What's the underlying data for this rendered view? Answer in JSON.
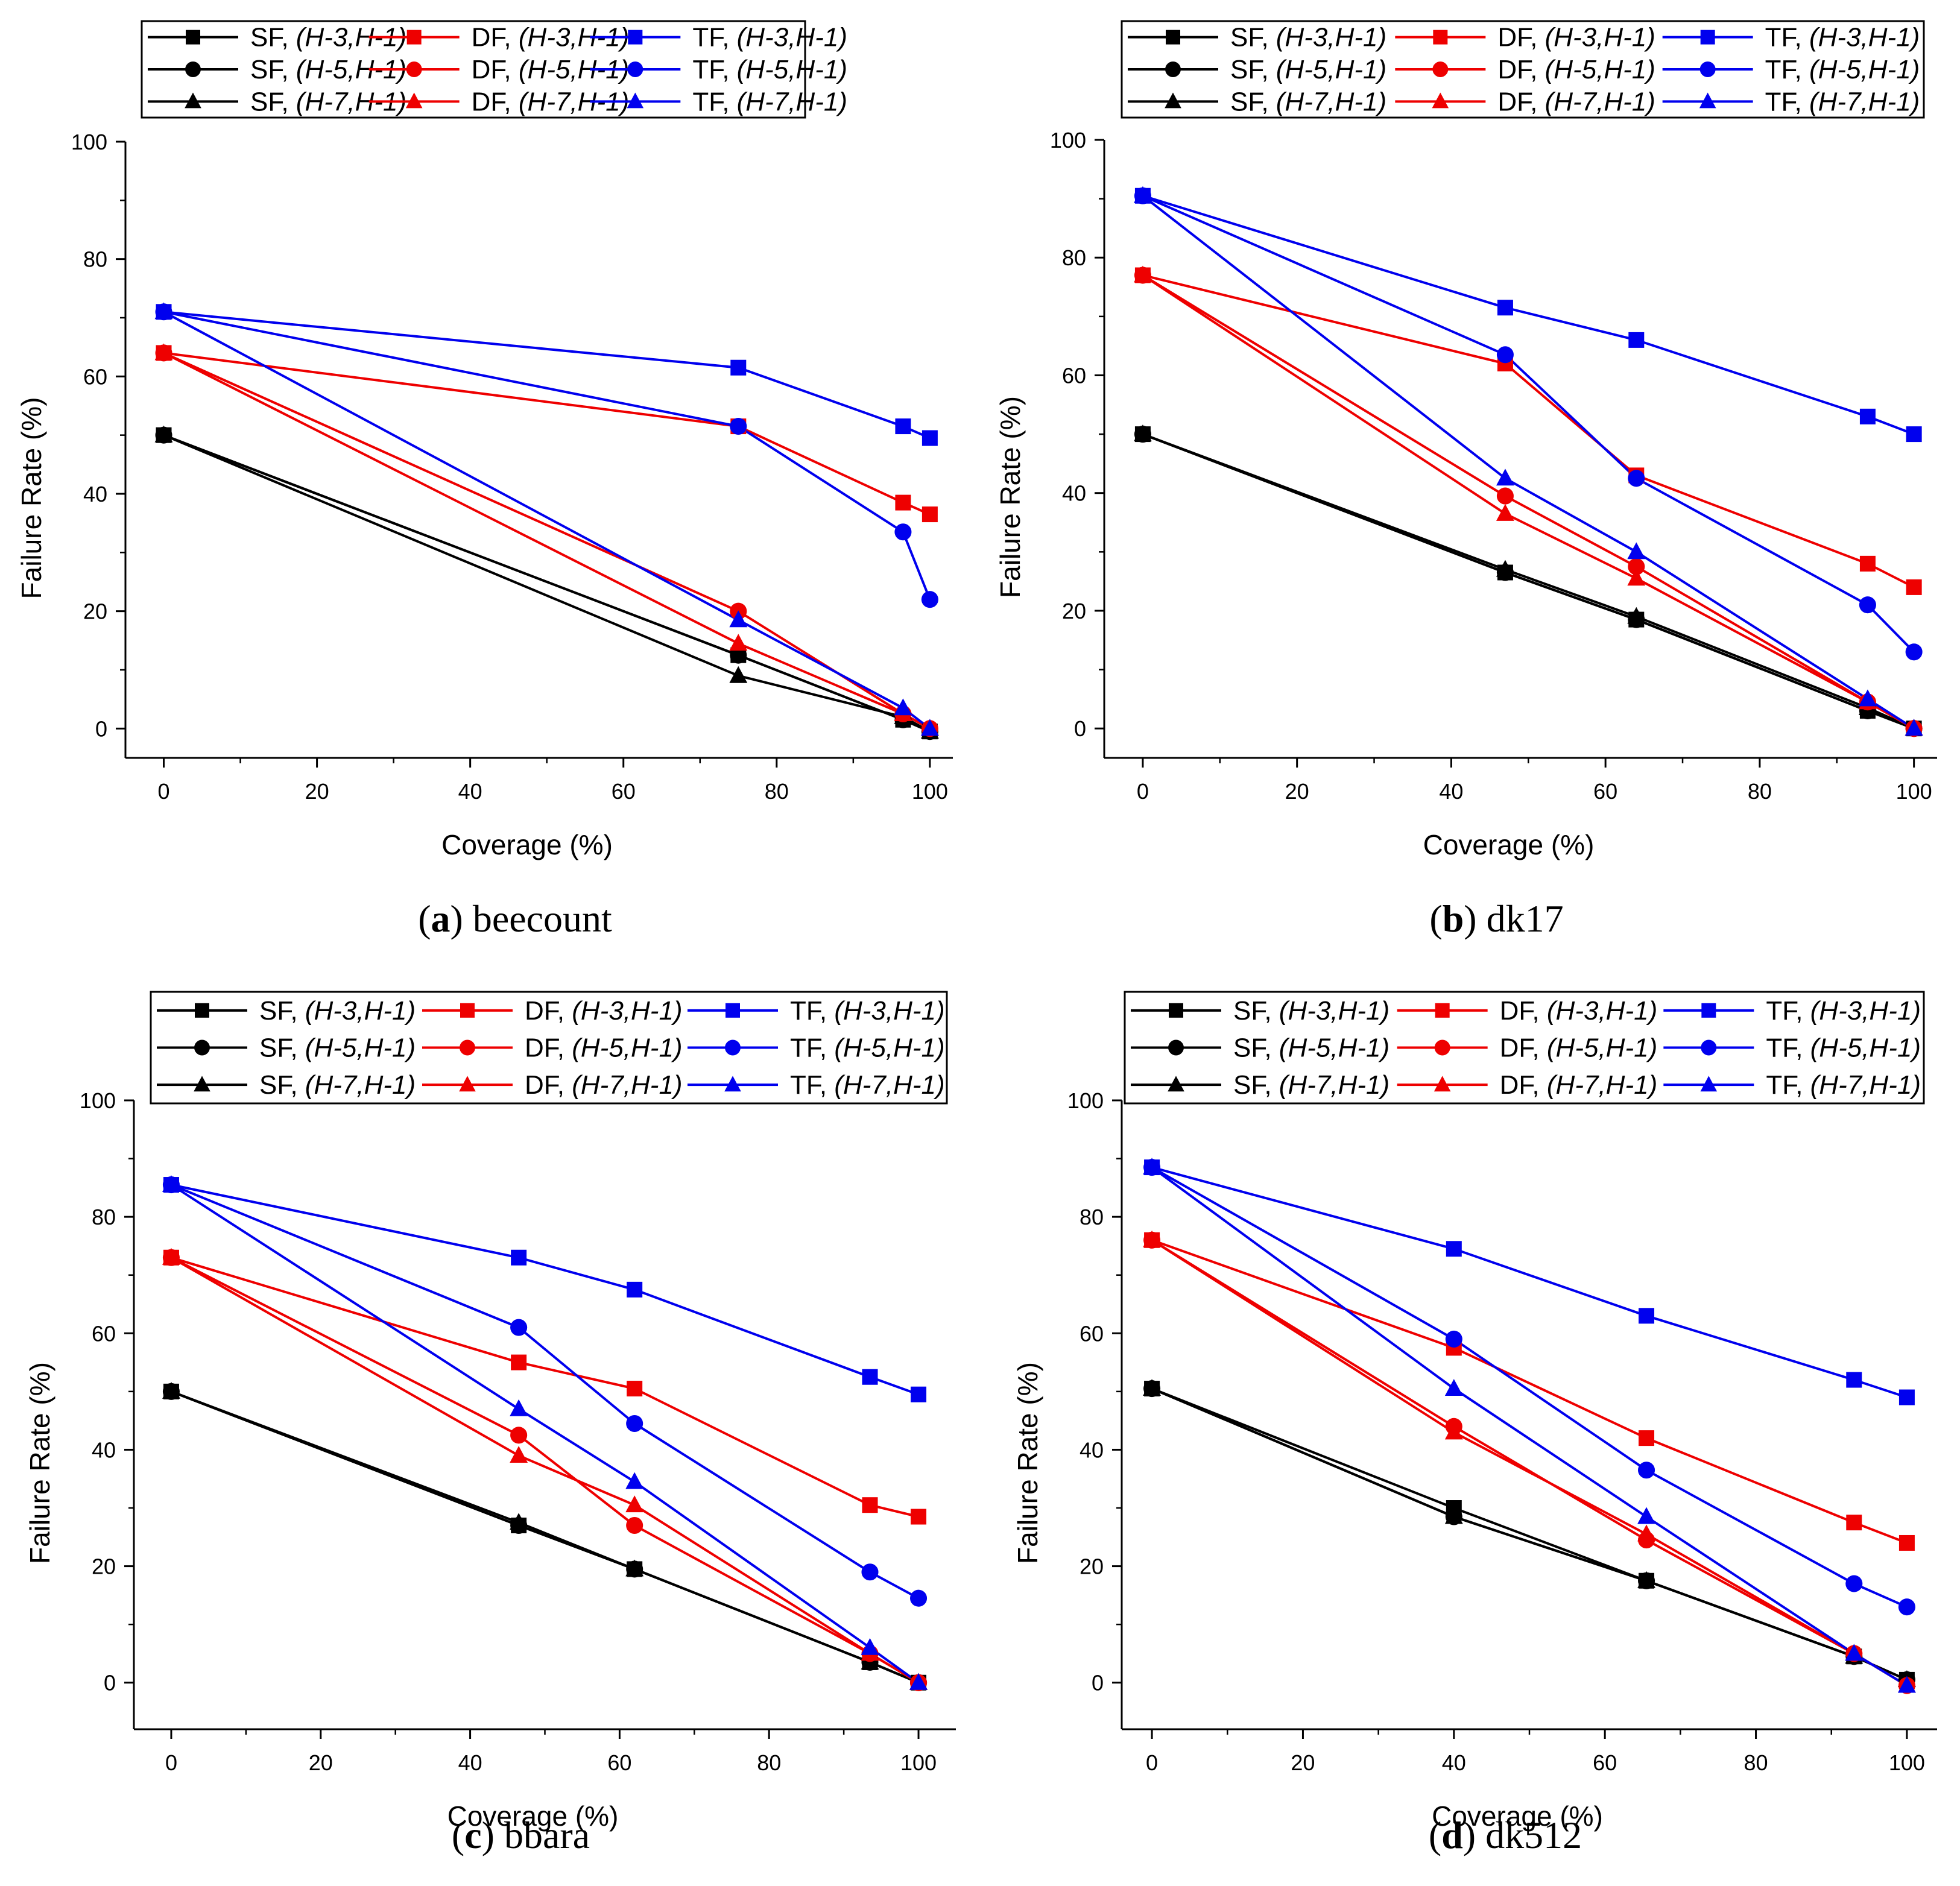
{
  "figure": {
    "legend_entries": [
      {
        "prefix": "SF, ",
        "params": "(H-3,H-1)",
        "color": "#000000",
        "marker": "square"
      },
      {
        "prefix": "DF, ",
        "params": "(H-3,H-1)",
        "color": "#ee0000",
        "marker": "square"
      },
      {
        "prefix": "TF, ",
        "params": "(H-3,H-1)",
        "color": "#0000ee",
        "marker": "square"
      },
      {
        "prefix": "SF, ",
        "params": "(H-5,H-1)",
        "color": "#000000",
        "marker": "circle"
      },
      {
        "prefix": "DF, ",
        "params": "(H-5,H-1)",
        "color": "#ee0000",
        "marker": "circle"
      },
      {
        "prefix": "TF, ",
        "params": "(H-5,H-1)",
        "color": "#0000ee",
        "marker": "circle"
      },
      {
        "prefix": "SF, ",
        "params": "(H-7,H-1)",
        "color": "#000000",
        "marker": "triangle"
      },
      {
        "prefix": "DF, ",
        "params": "(H-7,H-1)",
        "color": "#ee0000",
        "marker": "triangle"
      },
      {
        "prefix": "TF, ",
        "params": "(H-7,H-1)",
        "color": "#0000ee",
        "marker": "triangle"
      }
    ]
  },
  "chart_data": [
    {
      "type": "line",
      "caption_letter": "(a)",
      "caption_name": "beecount",
      "xlabel": "Coverage (%)",
      "ylabel": "Failure Rate (%)",
      "xlim": [
        -5,
        103
      ],
      "ylim": [
        -5,
        100
      ],
      "xticks": [
        0,
        20,
        40,
        60,
        80,
        100
      ],
      "yticks": [
        0,
        20,
        40,
        60,
        80,
        100
      ],
      "series": [
        {
          "name": "SF, (H-3,H-1)",
          "x": [
            0,
            75,
            96.5,
            100
          ],
          "y": [
            50,
            12.5,
            1.5,
            -0.5
          ]
        },
        {
          "name": "SF, (H-5,H-1)",
          "x": [
            0,
            75,
            96.5,
            100
          ],
          "y": [
            50,
            12.5,
            1.5,
            -0.5
          ]
        },
        {
          "name": "SF, (H-7,H-1)",
          "x": [
            0,
            75,
            96.5,
            100
          ],
          "y": [
            50,
            9,
            2,
            -0.5
          ]
        },
        {
          "name": "DF, (H-3,H-1)",
          "x": [
            0,
            75,
            96.5,
            100
          ],
          "y": [
            64,
            51.5,
            38.5,
            36.5
          ]
        },
        {
          "name": "DF, (H-5,H-1)",
          "x": [
            0,
            75,
            96.5,
            100
          ],
          "y": [
            64,
            20,
            2.5,
            0
          ]
        },
        {
          "name": "DF, (H-7,H-1)",
          "x": [
            0,
            75,
            96.5,
            100
          ],
          "y": [
            64,
            14.5,
            2.5,
            0
          ]
        },
        {
          "name": "TF, (H-3,H-1)",
          "x": [
            0,
            75,
            96.5,
            100
          ],
          "y": [
            71,
            61.5,
            51.5,
            49.5
          ]
        },
        {
          "name": "TF, (H-5,H-1)",
          "x": [
            0,
            75,
            96.5,
            100
          ],
          "y": [
            71,
            51.5,
            33.5,
            22
          ]
        },
        {
          "name": "TF, (H-7,H-1)",
          "x": [
            0,
            75,
            96.5,
            100
          ],
          "y": [
            71,
            18.5,
            3.5,
            0
          ]
        }
      ]
    },
    {
      "type": "line",
      "caption_letter": "(b)",
      "caption_name": "dk17",
      "xlabel": "Coverage (%)",
      "ylabel": "Failure Rate (%)",
      "xlim": [
        -5,
        103
      ],
      "ylim": [
        -5,
        100
      ],
      "xticks": [
        0,
        20,
        40,
        60,
        80,
        100
      ],
      "yticks": [
        0,
        20,
        40,
        60,
        80,
        100
      ],
      "series": [
        {
          "name": "SF, (H-3,H-1)",
          "x": [
            0,
            47,
            64,
            94,
            100
          ],
          "y": [
            50,
            26.5,
            18.5,
            3,
            0
          ]
        },
        {
          "name": "SF, (H-5,H-1)",
          "x": [
            0,
            47,
            64,
            94,
            100
          ],
          "y": [
            50,
            26.5,
            18.5,
            3,
            0
          ]
        },
        {
          "name": "SF, (H-7,H-1)",
          "x": [
            0,
            47,
            64,
            94,
            100
          ],
          "y": [
            50,
            27,
            19,
            3.5,
            0
          ]
        },
        {
          "name": "DF, (H-3,H-1)",
          "x": [
            0,
            47,
            64,
            94,
            100
          ],
          "y": [
            77,
            62,
            43,
            28,
            24
          ]
        },
        {
          "name": "DF, (H-5,H-1)",
          "x": [
            0,
            47,
            64,
            94,
            100
          ],
          "y": [
            77,
            39.5,
            27.5,
            4.5,
            0
          ]
        },
        {
          "name": "DF, (H-7,H-1)",
          "x": [
            0,
            47,
            64,
            94,
            100
          ],
          "y": [
            77,
            36.5,
            25.5,
            4.5,
            0
          ]
        },
        {
          "name": "TF, (H-3,H-1)",
          "x": [
            0,
            47,
            64,
            94,
            100
          ],
          "y": [
            90.5,
            71.5,
            66,
            53,
            50
          ]
        },
        {
          "name": "TF, (H-5,H-1)",
          "x": [
            0,
            47,
            64,
            94,
            100
          ],
          "y": [
            90.5,
            63.5,
            42.5,
            21,
            13
          ]
        },
        {
          "name": "TF, (H-7,H-1)",
          "x": [
            0,
            47,
            64,
            94,
            100
          ],
          "y": [
            90.5,
            42.5,
            30,
            5,
            0
          ]
        }
      ]
    },
    {
      "type": "line",
      "caption_letter": "(c)",
      "caption_name": "bbara",
      "xlabel": "Coverage (%)",
      "ylabel": "Failure Rate (%)",
      "xlim": [
        -5,
        105
      ],
      "ylim": [
        -8,
        100
      ],
      "xticks": [
        0,
        20,
        40,
        60,
        80,
        100
      ],
      "yticks": [
        0,
        20,
        40,
        60,
        80,
        100
      ],
      "series": [
        {
          "name": "SF, (H-3,H-1)",
          "x": [
            0,
            46.5,
            62,
            93.5,
            100
          ],
          "y": [
            50,
            27,
            19.5,
            3.5,
            0
          ]
        },
        {
          "name": "SF, (H-5,H-1)",
          "x": [
            0,
            46.5,
            62,
            93.5,
            100
          ],
          "y": [
            50,
            27,
            19.5,
            3.5,
            0
          ]
        },
        {
          "name": "SF, (H-7,H-1)",
          "x": [
            0,
            46.5,
            62,
            93.5,
            100
          ],
          "y": [
            50,
            27.5,
            19.5,
            3.5,
            0
          ]
        },
        {
          "name": "DF, (H-3,H-1)",
          "x": [
            0,
            46.5,
            62,
            93.5,
            100
          ],
          "y": [
            73,
            55,
            50.5,
            30.5,
            28.5
          ]
        },
        {
          "name": "DF, (H-5,H-1)",
          "x": [
            0,
            46.5,
            62,
            93.5,
            100
          ],
          "y": [
            73,
            42.5,
            27,
            5,
            0
          ]
        },
        {
          "name": "DF, (H-7,H-1)",
          "x": [
            0,
            46.5,
            62,
            93.5,
            100
          ],
          "y": [
            73,
            39,
            30.5,
            5,
            0
          ]
        },
        {
          "name": "TF, (H-3,H-1)",
          "x": [
            0,
            46.5,
            62,
            93.5,
            100
          ],
          "y": [
            85.5,
            73,
            67.5,
            52.5,
            49.5
          ]
        },
        {
          "name": "TF, (H-5,H-1)",
          "x": [
            0,
            46.5,
            62,
            93.5,
            100
          ],
          "y": [
            85.5,
            61,
            44.5,
            19,
            14.5
          ]
        },
        {
          "name": "TF, (H-7,H-1)",
          "x": [
            0,
            46.5,
            62,
            93.5,
            100
          ],
          "y": [
            85.5,
            47,
            34.5,
            6,
            0
          ]
        }
      ]
    },
    {
      "type": "line",
      "caption_letter": "(d)",
      "caption_name": "dk512",
      "xlabel": "Coverage (%)",
      "ylabel": "Failure Rate (%)",
      "xlim": [
        -4,
        104
      ],
      "ylim": [
        -8,
        100
      ],
      "xticks": [
        0,
        20,
        40,
        60,
        80,
        100
      ],
      "yticks": [
        0,
        20,
        40,
        60,
        80,
        100
      ],
      "series": [
        {
          "name": "SF, (H-3,H-1)",
          "x": [
            0,
            40,
            65.5,
            93,
            100
          ],
          "y": [
            50.5,
            30,
            17.5,
            4.5,
            0.5
          ]
        },
        {
          "name": "SF, (H-5,H-1)",
          "x": [
            0,
            40,
            65.5,
            93,
            100
          ],
          "y": [
            50.5,
            28.5,
            17.5,
            4.5,
            0.5
          ]
        },
        {
          "name": "SF, (H-7,H-1)",
          "x": [
            0,
            40,
            65.5,
            93,
            100
          ],
          "y": [
            50.5,
            28.5,
            17.5,
            4.5,
            0.5
          ]
        },
        {
          "name": "DF, (H-3,H-1)",
          "x": [
            0,
            40,
            65.5,
            93,
            100
          ],
          "y": [
            76,
            57.5,
            42,
            27.5,
            24
          ]
        },
        {
          "name": "DF, (H-5,H-1)",
          "x": [
            0,
            40,
            65.5,
            93,
            100
          ],
          "y": [
            76,
            44,
            24.5,
            5,
            -0.5
          ]
        },
        {
          "name": "DF, (H-7,H-1)",
          "x": [
            0,
            40,
            65.5,
            93,
            100
          ],
          "y": [
            76,
            43,
            25.5,
            5,
            -0.5
          ]
        },
        {
          "name": "TF, (H-3,H-1)",
          "x": [
            0,
            40,
            65.5,
            93,
            100
          ],
          "y": [
            88.5,
            74.5,
            63,
            52,
            49
          ]
        },
        {
          "name": "TF, (H-5,H-1)",
          "x": [
            0,
            40,
            65.5,
            93,
            100
          ],
          "y": [
            88.5,
            59,
            36.5,
            17,
            13
          ]
        },
        {
          "name": "TF, (H-7,H-1)",
          "x": [
            0,
            40,
            65.5,
            93,
            100
          ],
          "y": [
            88.5,
            50.5,
            28.5,
            5,
            -0.5
          ]
        }
      ]
    }
  ]
}
